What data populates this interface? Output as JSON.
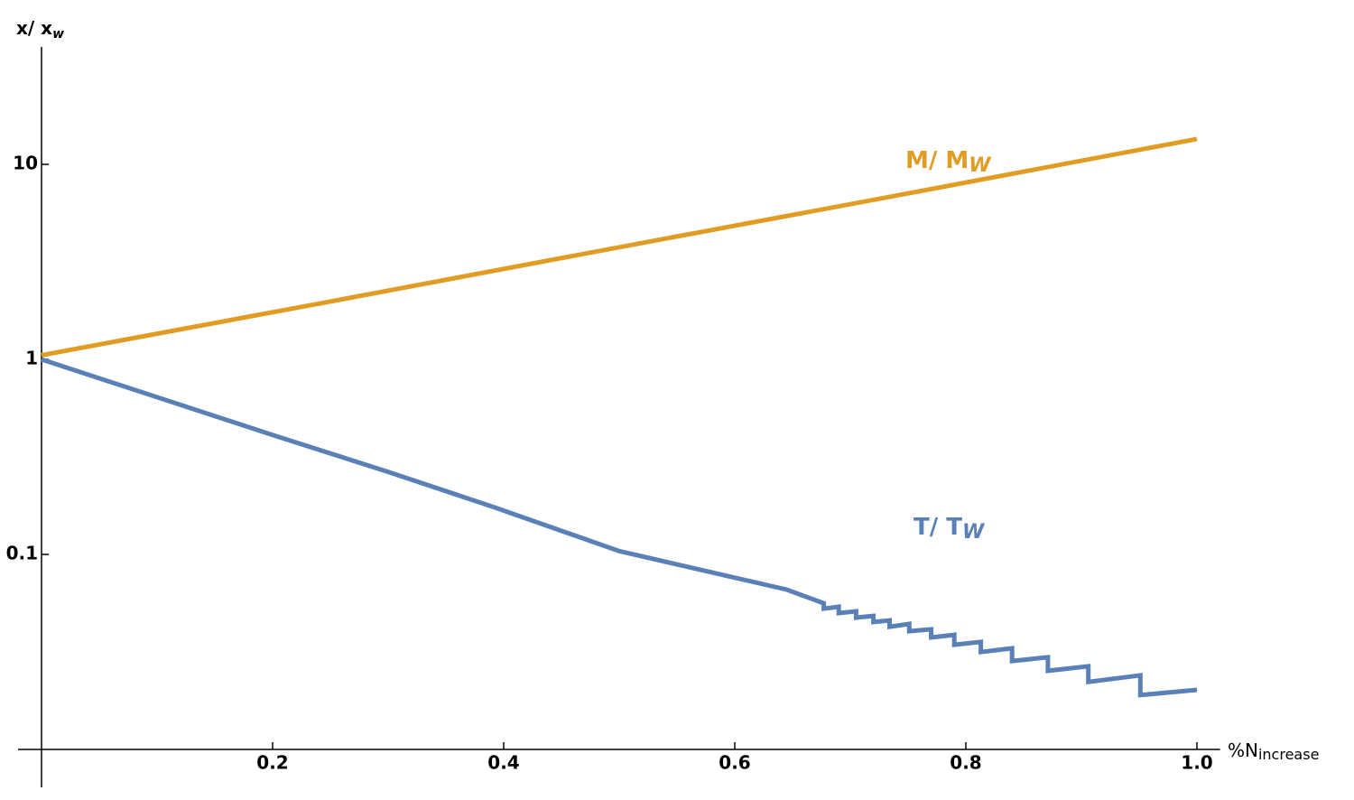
{
  "chart_data": {
    "type": "line",
    "log_y": true,
    "y_label": {
      "text": "x/ x",
      "sub": "w"
    },
    "x_label": {
      "text": "%N",
      "sub": "increase"
    },
    "xlim": [
      0,
      1.02
    ],
    "ylim": [
      0.01,
      40
    ],
    "xticks": [
      0.2,
      0.4,
      0.6,
      0.8,
      {
        "value": 1,
        "label": "1.0"
      }
    ],
    "yticks": [
      0.1,
      1,
      10
    ],
    "series": [
      {
        "name": "M/ M",
        "name_sub": "W",
        "color": "#e19c24",
        "x": [
          0,
          0.25,
          0.5,
          0.75,
          1.0
        ],
        "values": [
          1.05,
          1.98,
          3.76,
          7.1,
          13.5
        ]
      },
      {
        "name": "T/ T",
        "name_sub": "W",
        "color": "#5a80b8",
        "x": [
          0,
          0.1,
          0.2,
          0.3,
          0.39,
          0.5,
          0.6,
          0.645,
          0.677,
          0.677,
          0.69,
          0.69,
          0.705,
          0.705,
          0.72,
          0.72,
          0.734,
          0.734,
          0.751,
          0.751,
          0.77,
          0.77,
          0.79,
          0.79,
          0.813,
          0.813,
          0.84,
          0.84,
          0.871,
          0.871,
          0.906,
          0.906,
          0.951,
          0.951,
          1.0
        ],
        "values": [
          1,
          0.64,
          0.41,
          0.265,
          0.176,
          0.104,
          0.076,
          0.066,
          0.0562,
          0.0527,
          0.0539,
          0.05,
          0.0511,
          0.0474,
          0.0484,
          0.045,
          0.0459,
          0.0426,
          0.044,
          0.0404,
          0.0413,
          0.0375,
          0.0387,
          0.0344,
          0.0356,
          0.0316,
          0.033,
          0.0284,
          0.0297,
          0.0253,
          0.0267,
          0.0222,
          0.024,
          0.019,
          0.0202
        ]
      }
    ]
  }
}
